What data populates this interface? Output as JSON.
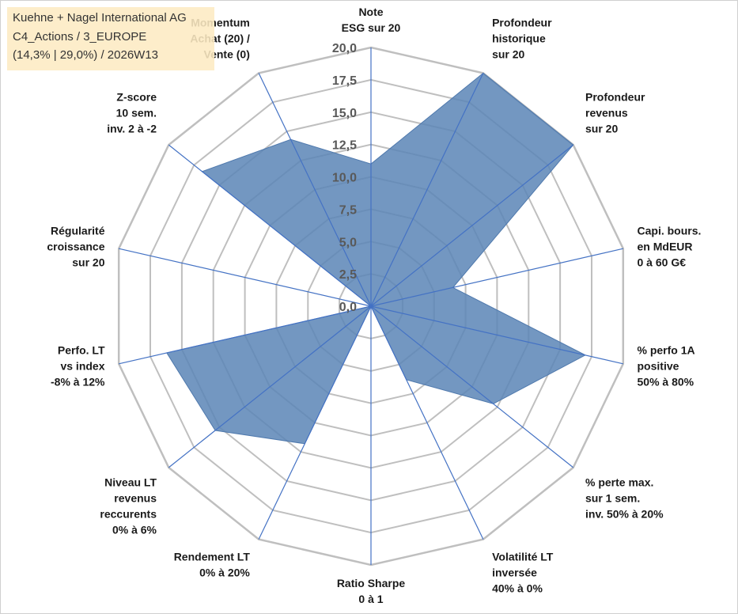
{
  "header": {
    "line1": "Kuehne + Nagel International AG",
    "line2": "C4_Actions / 3_EUROPE",
    "line3": "(14,3% | 29,0%) / 2026W13"
  },
  "colors": {
    "fill": "#5b85b6",
    "line": "#4472c4",
    "grid": "#bfbfbf"
  },
  "chart_data": {
    "type": "radar",
    "rmax": 20,
    "tick_labels": [
      "0,0",
      "2,5",
      "5,0",
      "7,5",
      "10,0",
      "12,5",
      "15,0",
      "17,5",
      "20,0"
    ],
    "axes": [
      {
        "label": [
          "Note",
          "ESG sur 20"
        ],
        "value": 11.0
      },
      {
        "label": [
          "Profondeur",
          "historique",
          "sur 20"
        ],
        "value": 20.0
      },
      {
        "label": [
          "Profondeur",
          "revenus",
          "sur 20"
        ],
        "value": 20.0
      },
      {
        "label": [
          "Capi. bours.",
          "en MdEUR",
          "0 à 60 G€"
        ],
        "value": 6.5
      },
      {
        "label": [
          "% perfo 1A",
          "positive",
          "50% à 80%"
        ],
        "value": 17.0
      },
      {
        "label": [
          "% perte max.",
          "sur 1 sem.",
          "inv. 50% à 20%"
        ],
        "value": 12.1
      },
      {
        "label": [
          "Volatilité LT",
          "inversée",
          "40% à 0%"
        ],
        "value": 6.3
      },
      {
        "label": [
          "Ratio Sharpe",
          "0 à 1"
        ],
        "value": 0.0
      },
      {
        "label": [
          "Rendement LT",
          "0% à 20%"
        ],
        "value": 11.8
      },
      {
        "label": [
          "Niveau LT",
          "revenus",
          "reccurents",
          "0% à 6%"
        ],
        "value": 15.4
      },
      {
        "label": [
          "Perfo. LT",
          "vs index",
          "-8% à 12%"
        ],
        "value": 16.2
      },
      {
        "label": [
          "Régularité",
          "croissance",
          "sur 20"
        ],
        "value": 0.0
      },
      {
        "label": [
          "Z-score",
          "10 sem.",
          "inv. 2 à -2"
        ],
        "value": 16.7
      },
      {
        "label": [
          "Momentum",
          "Achat (20) /",
          "Vente (0)"
        ],
        "value": 14.3
      }
    ]
  }
}
